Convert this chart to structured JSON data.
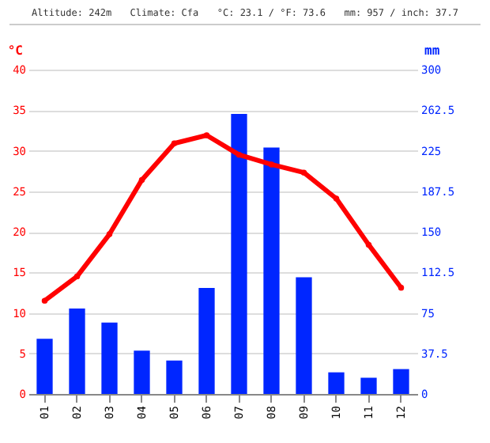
{
  "chart_data": {
    "type": "bar",
    "annotations": [
      "Altitude: 242m",
      "Climate: Cfa",
      "°C: 23.1 / °F: 73.6",
      "mm: 957 / inch: 37.7"
    ],
    "ylabel": "°C",
    "y2label": "mm",
    "categories": [
      "01",
      "02",
      "03",
      "04",
      "05",
      "06",
      "07",
      "08",
      "09",
      "10",
      "11",
      "12"
    ],
    "series": [
      {
        "axis": "y2",
        "color": "#0026ff",
        "values": [
          51,
          79,
          66,
          40,
          31,
          98,
          259,
          228,
          108,
          20,
          15,
          23
        ]
      },
      {
        "type": "line",
        "color": "#ff0000",
        "values": [
          11.5,
          14.5,
          19.7,
          26.4,
          30.9,
          31.9,
          29.5,
          28.3,
          27.3,
          24.1,
          18.4,
          13.1
        ]
      }
    ],
    "ylim": [
      0,
      40
    ],
    "yticks": [
      0,
      5,
      10,
      15,
      20,
      25,
      30,
      35,
      40
    ],
    "y2lim": [
      0,
      300
    ],
    "y2ticks": [
      0,
      {
        "value": 37.5,
        "label": "37.5"
      },
      75,
      {
        "value": 112.5,
        "label": "112.5"
      },
      150,
      {
        "value": 187.5,
        "label": "187.5"
      },
      225,
      {
        "value": 262.5,
        "label": "262.5"
      },
      300
    ],
    "grid": "y",
    "marker": "circle",
    "line_style": "solid"
  }
}
